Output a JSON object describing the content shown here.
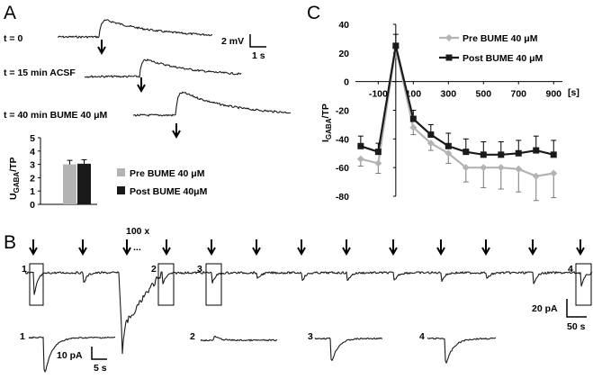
{
  "panel_a": {
    "letter": "A",
    "trace_labels": [
      "t = 0",
      "t = 15 min ACSF",
      "t = 40 min BUME 40 μM"
    ],
    "scale_voltage": "2 mV",
    "scale_time": "1 s"
  },
  "panel_b": {
    "letter": "B",
    "repeat_label": "100 x",
    "ellipsis": "...",
    "box_labels": [
      "1",
      "2",
      "3",
      "4"
    ],
    "scale_current": "20 pA",
    "scale_time": "50 s",
    "inset_labels": [
      "1",
      "2",
      "3",
      "4"
    ],
    "inset_scale_current": "10 pA",
    "inset_scale_time": "5 s"
  },
  "panel_c": {
    "letter": "C",
    "x_unit": "[s]"
  },
  "colors": {
    "pre": "#b3b3b3",
    "post": "#1a1a1a"
  },
  "chart_data": [
    {
      "type": "bar",
      "ylabel_main": "U",
      "ylabel_sub": "GABA",
      "ylabel_tail": "/TP",
      "categories": [
        "Pre BUME 40 μM",
        "Post BUME 40μM"
      ],
      "legend": [
        "Pre BUME 40 μM",
        "Post BUME 40μM"
      ],
      "values": [
        3.0,
        3.05
      ],
      "errors": [
        0.3,
        0.3
      ],
      "ylim": [
        0,
        5
      ],
      "yticks": [
        0,
        1,
        2,
        3,
        4,
        5
      ],
      "legend_position": "right"
    },
    {
      "type": "line",
      "ylabel_main": "I",
      "ylabel_sub": "GABA",
      "ylabel_tail": "/TP",
      "xunit": "[s]",
      "xticks": [
        -100,
        100,
        300,
        500,
        700,
        900
      ],
      "yticks": [
        -80,
        -60,
        -40,
        -20,
        0,
        20,
        40
      ],
      "xlim": [
        -230,
        950
      ],
      "ylim": [
        -80,
        40
      ],
      "legend_position": "top-right",
      "series": [
        {
          "name": "Pre BUME 40 μM",
          "x": [
            -200,
            -100,
            0,
            100,
            200,
            300,
            400,
            500,
            600,
            700,
            800,
            900
          ],
          "y": [
            -54,
            -57,
            24,
            -32,
            -43,
            -50,
            -60,
            -60,
            -60,
            -61,
            -66,
            -64
          ],
          "err": [
            5,
            7,
            8,
            5,
            5,
            7,
            10,
            14,
            15,
            16,
            17,
            17
          ]
        },
        {
          "name": "Post BUME 40 μM",
          "x": [
            -200,
            -100,
            0,
            100,
            200,
            300,
            400,
            500,
            600,
            700,
            800,
            900
          ],
          "y": [
            -45,
            -49,
            25,
            -26,
            -37,
            -45,
            -49,
            -51,
            -51,
            -50,
            -48,
            -51
          ],
          "err": [
            7,
            6,
            8,
            6,
            7,
            9,
            9,
            9,
            9,
            9,
            10,
            10
          ]
        }
      ]
    }
  ]
}
